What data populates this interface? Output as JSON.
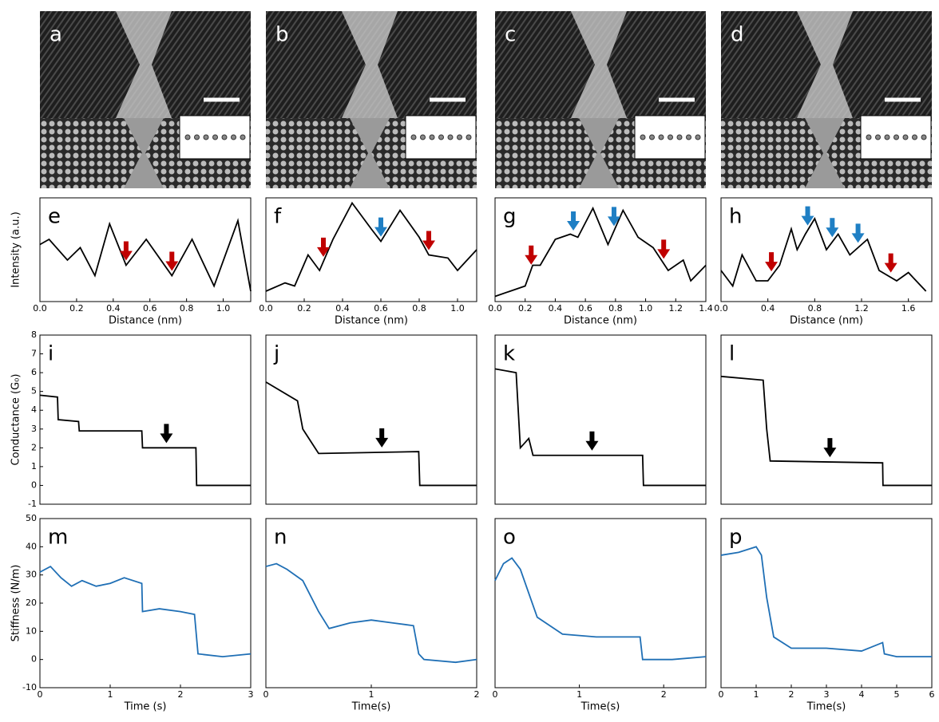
{
  "images": [
    {
      "label": "a"
    },
    {
      "label": "b"
    },
    {
      "label": "c"
    },
    {
      "label": "d"
    }
  ],
  "chart_data": [
    {
      "type": "line",
      "label": "e",
      "ylabel": "Intensity (a.u.)",
      "xlabel": "Distance (nm)",
      "color": "#000000",
      "xlim": [
        0,
        1.15
      ],
      "ylim": [
        0,
        1
      ],
      "xticks": [
        {
          "value": 0,
          "label": "0.0"
        },
        0.2,
        0.4,
        0.6,
        0.8,
        {
          "value": 1,
          "label": "1.0"
        }
      ],
      "x": [
        0,
        0.05,
        0.15,
        0.22,
        0.3,
        0.38,
        0.47,
        0.58,
        0.72,
        0.83,
        0.95,
        1.08,
        1.15
      ],
      "values": [
        0.55,
        0.6,
        0.4,
        0.52,
        0.25,
        0.75,
        0.35,
        0.6,
        0.25,
        0.6,
        0.15,
        0.78,
        0.1
      ],
      "arrows": [
        {
          "x": 0.47,
          "color": "#c00000"
        },
        {
          "x": 0.72,
          "color": "#c00000"
        }
      ]
    },
    {
      "type": "line",
      "label": "f",
      "xlabel": "Distance (nm)",
      "color": "#000000",
      "xlim": [
        0,
        1.1
      ],
      "ylim": [
        0,
        1
      ],
      "xticks": [
        {
          "value": 0,
          "label": "0.0"
        },
        0.2,
        0.4,
        0.6,
        0.8,
        {
          "value": 1,
          "label": "1.0"
        }
      ],
      "x": [
        0,
        0.1,
        0.15,
        0.22,
        0.28,
        0.35,
        0.45,
        0.55,
        0.6,
        0.7,
        0.8,
        0.85,
        0.95,
        1.0,
        1.1
      ],
      "values": [
        0.1,
        0.18,
        0.15,
        0.45,
        0.3,
        0.6,
        0.95,
        0.7,
        0.58,
        0.88,
        0.62,
        0.45,
        0.42,
        0.3,
        0.5
      ],
      "arrows": [
        {
          "x": 0.3,
          "color": "#c00000"
        },
        {
          "x": 0.6,
          "color": "#1f7fc4"
        },
        {
          "x": 0.85,
          "color": "#c00000"
        }
      ]
    },
    {
      "type": "line",
      "label": "g",
      "xlabel": "Distance (nm)",
      "color": "#000000",
      "xlim": [
        0,
        1.4
      ],
      "ylim": [
        0,
        1
      ],
      "xticks": [
        {
          "value": 0,
          "label": "0.0"
        },
        0.2,
        0.4,
        0.6,
        0.8,
        {
          "value": 1,
          "label": "1.0"
        },
        1.2,
        1.4
      ],
      "x": [
        0,
        0.1,
        0.2,
        0.25,
        0.3,
        0.4,
        0.5,
        0.55,
        0.65,
        0.75,
        0.85,
        0.95,
        1.05,
        1.15,
        1.25,
        1.3,
        1.4
      ],
      "values": [
        0.05,
        0.1,
        0.15,
        0.35,
        0.35,
        0.6,
        0.65,
        0.62,
        0.9,
        0.55,
        0.88,
        0.62,
        0.52,
        0.3,
        0.4,
        0.2,
        0.35
      ],
      "arrows": [
        {
          "x": 0.24,
          "color": "#c00000"
        },
        {
          "x": 0.52,
          "color": "#1f7fc4"
        },
        {
          "x": 0.79,
          "color": "#1f7fc4"
        },
        {
          "x": 1.12,
          "color": "#c00000"
        }
      ]
    },
    {
      "type": "line",
      "label": "h",
      "xlabel": "Distance (nm)",
      "color": "#000000",
      "xlim": [
        0,
        1.8
      ],
      "ylim": [
        0,
        1
      ],
      "xticks": [
        {
          "value": 0,
          "label": "0.0"
        },
        0.4,
        0.8,
        1.2,
        1.6
      ],
      "x": [
        0,
        0.1,
        0.18,
        0.3,
        0.4,
        0.5,
        0.6,
        0.65,
        0.72,
        0.8,
        0.9,
        1.0,
        1.1,
        1.25,
        1.35,
        1.5,
        1.6,
        1.75
      ],
      "values": [
        0.3,
        0.15,
        0.45,
        0.2,
        0.2,
        0.35,
        0.7,
        0.5,
        0.65,
        0.8,
        0.5,
        0.65,
        0.45,
        0.6,
        0.3,
        0.2,
        0.28,
        0.1
      ],
      "arrows": [
        {
          "x": 0.43,
          "color": "#c00000"
        },
        {
          "x": 0.74,
          "color": "#1f7fc4"
        },
        {
          "x": 0.95,
          "color": "#1f7fc4"
        },
        {
          "x": 1.17,
          "color": "#1f7fc4"
        },
        {
          "x": 1.45,
          "color": "#c00000"
        }
      ]
    },
    {
      "type": "line",
      "label": "i",
      "ylabel": "Conductance (G₀)",
      "color": "#000000",
      "xlim": [
        0,
        3
      ],
      "ylim": [
        -1,
        8
      ],
      "yticks": [
        -1,
        0,
        1,
        2,
        3,
        4,
        5,
        6,
        7,
        8
      ],
      "x": [
        0,
        0.25,
        0.26,
        0.55,
        0.56,
        1.45,
        1.46,
        2.22,
        2.23,
        3
      ],
      "values": [
        4.8,
        4.7,
        3.5,
        3.4,
        2.9,
        2.9,
        2,
        2,
        0,
        0
      ],
      "arrows": [
        {
          "x": 1.8,
          "color": "#000000"
        }
      ]
    },
    {
      "type": "line",
      "label": "j",
      "color": "#000000",
      "xlim": [
        0,
        2
      ],
      "ylim": [
        -1,
        8
      ],
      "x": [
        0,
        0.3,
        0.35,
        0.5,
        0.52,
        1.45,
        1.46,
        2
      ],
      "values": [
        5.5,
        4.5,
        3,
        1.7,
        1.7,
        1.8,
        0,
        0
      ],
      "arrows": [
        {
          "x": 1.1,
          "color": "#000000"
        }
      ]
    },
    {
      "type": "line",
      "label": "k",
      "color": "#000000",
      "xlim": [
        0,
        2.5
      ],
      "ylim": [
        -1,
        8
      ],
      "x": [
        0,
        0.25,
        0.3,
        0.4,
        0.45,
        1.75,
        1.76,
        2.5
      ],
      "values": [
        6.2,
        6,
        2,
        2.5,
        1.6,
        1.6,
        0,
        0
      ],
      "arrows": [
        {
          "x": 1.15,
          "color": "#000000"
        }
      ]
    },
    {
      "type": "line",
      "label": "l",
      "color": "#000000",
      "xlim": [
        0,
        6
      ],
      "ylim": [
        -1,
        8
      ],
      "x": [
        0,
        1.2,
        1.3,
        1.4,
        4.6,
        4.61,
        6
      ],
      "values": [
        5.8,
        5.6,
        3,
        1.3,
        1.2,
        0,
        0
      ],
      "arrows": [
        {
          "x": 3.1,
          "color": "#000000"
        }
      ]
    },
    {
      "type": "line",
      "label": "m",
      "ylabel": "Stiffness (N/m)",
      "xlabel": "Time (s)",
      "color": "#1f6fb5",
      "xlim": [
        0,
        3
      ],
      "ylim": [
        -10,
        50
      ],
      "yticks": [
        -10,
        0,
        10,
        20,
        30,
        40,
        50
      ],
      "xticks": [
        0,
        1,
        2,
        3
      ],
      "x": [
        0,
        0.15,
        0.3,
        0.45,
        0.6,
        0.8,
        1.0,
        1.2,
        1.45,
        1.46,
        1.7,
        2.0,
        2.2,
        2.25,
        2.6,
        3
      ],
      "values": [
        31,
        33,
        29,
        26,
        28,
        26,
        27,
        29,
        27,
        17,
        18,
        17,
        16,
        2,
        1,
        2
      ]
    },
    {
      "type": "line",
      "label": "n",
      "xlabel": "Time(s)",
      "color": "#1f6fb5",
      "xlim": [
        0,
        2
      ],
      "ylim": [
        -10,
        50
      ],
      "xticks": [
        0,
        1,
        2
      ],
      "x": [
        0,
        0.1,
        0.2,
        0.35,
        0.5,
        0.6,
        0.8,
        1.0,
        1.2,
        1.4,
        1.45,
        1.5,
        1.8,
        2
      ],
      "values": [
        33,
        34,
        32,
        28,
        17,
        11,
        13,
        14,
        13,
        12,
        2,
        0,
        -1,
        0
      ]
    },
    {
      "type": "line",
      "label": "o",
      "xlabel": "Time(s)",
      "color": "#1f6fb5",
      "xlim": [
        0,
        2.5
      ],
      "ylim": [
        -10,
        50
      ],
      "xticks": [
        0,
        1,
        2
      ],
      "x": [
        0,
        0.1,
        0.2,
        0.3,
        0.5,
        0.8,
        1.2,
        1.6,
        1.72,
        1.75,
        2.1,
        2.5
      ],
      "values": [
        28,
        34,
        36,
        32,
        15,
        9,
        8,
        8,
        8,
        0,
        0,
        1
      ]
    },
    {
      "type": "line",
      "label": "p",
      "xlabel": "Time(s)",
      "color": "#1f6fb5",
      "xlim": [
        0,
        6
      ],
      "ylim": [
        -10,
        50
      ],
      "xticks": [
        0,
        1,
        2,
        3,
        4,
        5,
        6
      ],
      "x": [
        0,
        0.5,
        1.0,
        1.15,
        1.3,
        1.5,
        2,
        3,
        4,
        4.6,
        4.65,
        5,
        6
      ],
      "values": [
        37,
        38,
        40,
        37,
        22,
        8,
        4,
        4,
        3,
        6,
        2,
        1,
        1
      ]
    }
  ]
}
